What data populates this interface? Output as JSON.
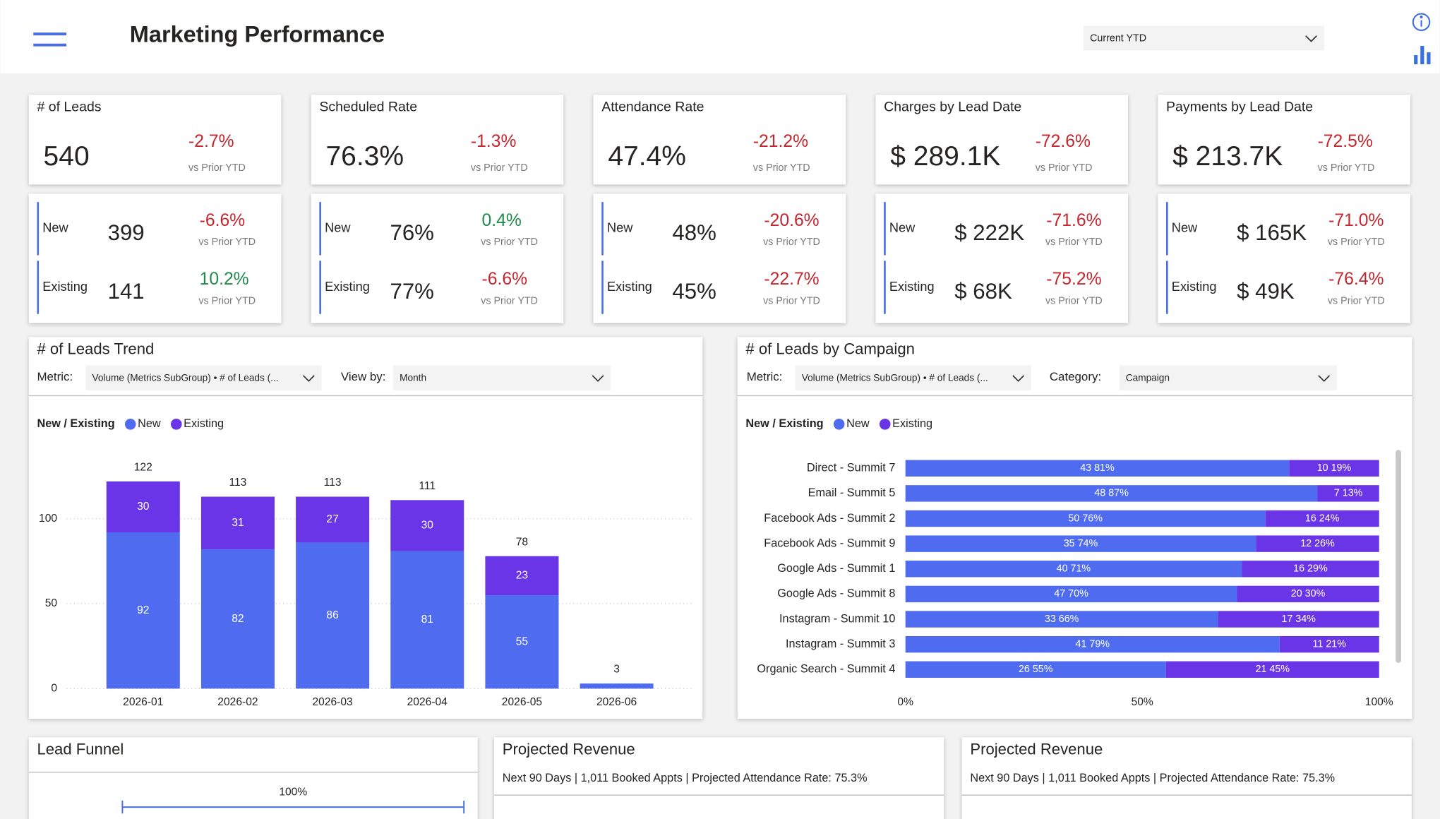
{
  "header": {
    "title": "Marketing Performance",
    "filter": "Current YTD"
  },
  "kpis": [
    {
      "title": "# of Leads",
      "value": "540",
      "change": "-2.7%",
      "compare": "vs Prior YTD",
      "rows": [
        {
          "label": "New",
          "value": "399",
          "change": "-6.6%",
          "compare": "vs Prior YTD"
        },
        {
          "label": "Existing",
          "value": "141",
          "change": "10.2%",
          "compare": "vs Prior YTD"
        }
      ]
    },
    {
      "title": "Scheduled Rate",
      "value": "76.3%",
      "change": "-1.3%",
      "compare": "vs Prior YTD",
      "rows": [
        {
          "label": "New",
          "value": "76%",
          "change": "0.4%",
          "compare": "vs Prior YTD"
        },
        {
          "label": "Existing",
          "value": "77%",
          "change": "-6.6%",
          "compare": "vs Prior YTD"
        }
      ]
    },
    {
      "title": "Attendance Rate",
      "value": "47.4%",
      "change": "-21.2%",
      "compare": "vs Prior YTD",
      "rows": [
        {
          "label": "New",
          "value": "48%",
          "change": "-20.6%",
          "compare": "vs Prior YTD"
        },
        {
          "label": "Existing",
          "value": "45%",
          "change": "-22.7%",
          "compare": "vs Prior YTD"
        }
      ]
    },
    {
      "title": "Charges by Lead Date",
      "value": "$ 289.1K",
      "change": "-72.6%",
      "compare": "vs Prior YTD",
      "rows": [
        {
          "label": "New",
          "value": "$ 222K",
          "change": "-71.6%",
          "compare": "vs Prior YTD"
        },
        {
          "label": "Existing",
          "value": "$ 68K",
          "change": "-75.2%",
          "compare": "vs Prior YTD"
        }
      ]
    },
    {
      "title": "Payments by Lead Date",
      "value": "$ 213.7K",
      "change": "-72.5%",
      "compare": "vs Prior YTD",
      "rows": [
        {
          "label": "New",
          "value": "$ 165K",
          "change": "-71.0%",
          "compare": "vs Prior YTD"
        },
        {
          "label": "Existing",
          "value": "$ 49K",
          "change": "-76.4%",
          "compare": "vs Prior YTD"
        }
      ]
    }
  ],
  "chart_data": [
    {
      "type": "bar",
      "title": "# of Leads Trend",
      "controls": [
        {
          "label": "Metric:",
          "value": "Volume (Metrics SubGroup) • # of Leads (..."
        },
        {
          "label": "View by:",
          "value": "Month"
        }
      ],
      "legend_title": "New / Existing",
      "categories": [
        "2026-01",
        "2026-02",
        "2026-03",
        "2026-04",
        "2026-05",
        "2026-06"
      ],
      "series": [
        {
          "name": "New",
          "color": "#4f6cf0",
          "values": [
            92,
            82,
            86,
            81,
            55,
            3
          ]
        },
        {
          "name": "Existing",
          "color": "#6a35e6",
          "values": [
            30,
            31,
            27,
            30,
            23,
            null
          ]
        }
      ],
      "total_labels": [
        122,
        113,
        113,
        111,
        78,
        3
      ],
      "ylim": [
        0,
        130
      ],
      "yticks": [
        0,
        50,
        100
      ],
      "grid": true
    },
    {
      "type": "hbar",
      "title": "# of Leads by Campaign",
      "controls": [
        {
          "label": "Metric:",
          "value": "Volume (Metrics SubGroup) • # of Leads (..."
        },
        {
          "label": "Category:",
          "value": "Campaign"
        }
      ],
      "legend_title": "New / Existing",
      "categories": [
        "Direct - Summit 7",
        "Email - Summit 5",
        "Facebook Ads - Summit 2",
        "Facebook Ads - Summit 9",
        "Google Ads - Summit 1",
        "Google Ads - Summit 8",
        "Instagram - Summit 10",
        "Instagram - Summit 3",
        "Organic Search - Summit 4"
      ],
      "series": [
        {
          "name": "New",
          "color": "#4f6cf0",
          "values": [
            81,
            87,
            76,
            74,
            71,
            70,
            66,
            79,
            55
          ],
          "value_labels": [
            "43 81%",
            "48 87%",
            "50 76%",
            "35 74%",
            "40 71%",
            "47 70%",
            "33 66%",
            "41 79%",
            "26 55%"
          ]
        },
        {
          "name": "Existing",
          "color": "#6a35e6",
          "values": [
            19,
            13,
            24,
            26,
            29,
            30,
            34,
            21,
            45
          ],
          "value_labels": [
            "10 19%",
            "7 13%",
            "16 24%",
            "12 26%",
            "16 29%",
            "20 30%",
            "17 34%",
            "11 21%",
            "21 45%"
          ]
        }
      ],
      "xlim": [
        0,
        100
      ],
      "xticks": [
        {
          "value": 0,
          "label": "0%"
        },
        {
          "value": 50,
          "label": "50%"
        },
        {
          "value": 100,
          "label": "100%"
        }
      ]
    }
  ],
  "funnel": {
    "title": "Lead Funnel",
    "top_label": "100%"
  },
  "revenue": [
    {
      "title": "Projected Revenue",
      "subtitle": "Next 90 Days | 1,011 Booked Appts | Projected Attendance Rate: 75.3%"
    },
    {
      "title": "Projected Revenue",
      "subtitle": "Next 90 Days | 1,011 Booked Appts | Projected Attendance Rate: 75.3%"
    }
  ]
}
